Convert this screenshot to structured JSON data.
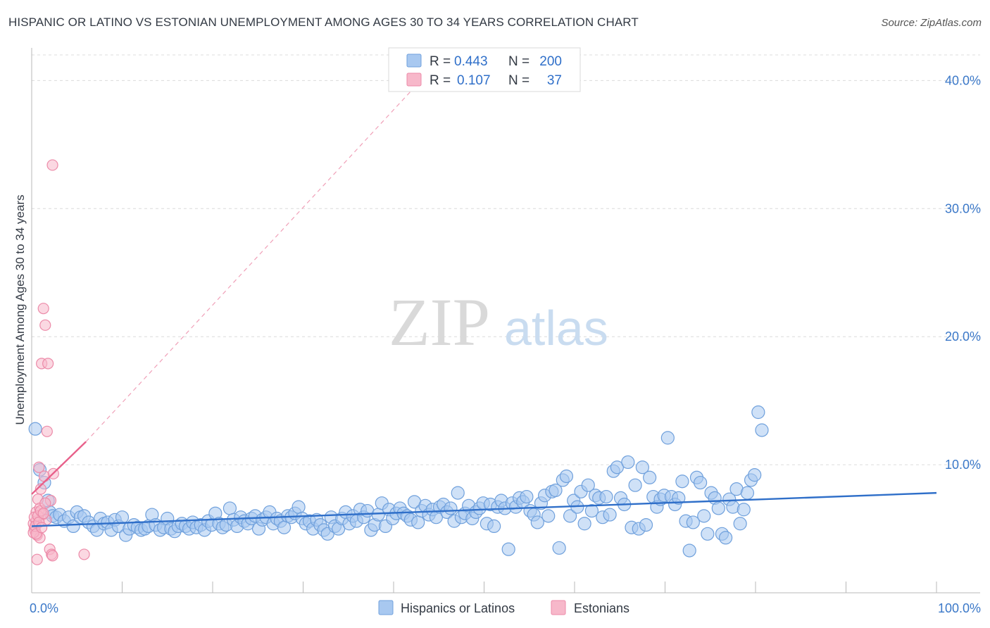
{
  "chart_data": {
    "type": "scatter",
    "title": "HISPANIC OR LATINO VS ESTONIAN UNEMPLOYMENT AMONG AGES 30 TO 34 YEARS CORRELATION CHART",
    "source": "Source: ZipAtlas.com",
    "ylabel": "Unemployment Among Ages 30 to 34 years",
    "xlim": [
      0,
      100
    ],
    "ylim": [
      0,
      42
    ],
    "x_tick_labels": [
      "0.0%",
      "100.0%"
    ],
    "y_ticks": [
      10,
      20,
      30,
      40
    ],
    "y_tick_labels": [
      "10.0%",
      "20.0%",
      "30.0%",
      "40.0%"
    ],
    "watermark": {
      "zip": "ZIP",
      "atlas": "atlas"
    },
    "legend": [
      {
        "r_label": "R =",
        "r_value": "0.443",
        "n_label": "N =",
        "n_value": "200",
        "color": "#a8c8f0"
      },
      {
        "r_label": "R =",
        "r_value": "0.107",
        "n_label": "N =",
        "n_value": "37",
        "color": "#f7b8ca"
      }
    ],
    "series": [
      {
        "name": "Hispanics or Latinos",
        "fill": "#a8c8f0",
        "stroke": "#6fa0dc",
        "trend": {
          "x": [
            0,
            100
          ],
          "y": [
            5.2,
            7.8
          ],
          "color": "#2f6fc9"
        },
        "points": [
          [
            0.4,
            12.8
          ],
          [
            0.9,
            9.6
          ],
          [
            1.4,
            8.6
          ],
          [
            1.8,
            7.2
          ],
          [
            2.0,
            6.3
          ],
          [
            2.3,
            6.0
          ],
          [
            2.7,
            5.9
          ],
          [
            3.1,
            6.1
          ],
          [
            3.6,
            5.6
          ],
          [
            4.1,
            5.9
          ],
          [
            4.6,
            5.2
          ],
          [
            5.0,
            6.3
          ],
          [
            5.4,
            5.9
          ],
          [
            5.8,
            6.0
          ],
          [
            6.3,
            5.5
          ],
          [
            6.8,
            5.2
          ],
          [
            7.2,
            4.9
          ],
          [
            7.6,
            5.8
          ],
          [
            8.0,
            5.4
          ],
          [
            8.4,
            5.5
          ],
          [
            8.8,
            4.9
          ],
          [
            9.2,
            5.7
          ],
          [
            9.6,
            5.2
          ],
          [
            10.0,
            5.9
          ],
          [
            10.4,
            4.5
          ],
          [
            10.8,
            5.0
          ],
          [
            11.3,
            5.3
          ],
          [
            11.7,
            5.1
          ],
          [
            12.1,
            4.9
          ],
          [
            12.5,
            5.0
          ],
          [
            12.9,
            5.2
          ],
          [
            13.3,
            6.1
          ],
          [
            13.7,
            5.3
          ],
          [
            14.2,
            4.9
          ],
          [
            14.6,
            5.1
          ],
          [
            15.0,
            5.8
          ],
          [
            15.4,
            5.0
          ],
          [
            15.8,
            4.8
          ],
          [
            16.2,
            5.2
          ],
          [
            16.6,
            5.4
          ],
          [
            17.0,
            5.2
          ],
          [
            17.4,
            5.0
          ],
          [
            17.8,
            5.5
          ],
          [
            18.2,
            5.1
          ],
          [
            18.7,
            5.3
          ],
          [
            19.1,
            4.9
          ],
          [
            19.5,
            5.6
          ],
          [
            19.9,
            5.3
          ],
          [
            20.3,
            6.2
          ],
          [
            20.7,
            5.4
          ],
          [
            21.1,
            5.1
          ],
          [
            21.5,
            5.3
          ],
          [
            21.9,
            6.6
          ],
          [
            22.3,
            5.7
          ],
          [
            22.7,
            5.2
          ],
          [
            23.1,
            5.9
          ],
          [
            23.5,
            5.6
          ],
          [
            23.9,
            5.4
          ],
          [
            24.3,
            5.8
          ],
          [
            24.7,
            6.0
          ],
          [
            25.1,
            5.0
          ],
          [
            25.5,
            5.7
          ],
          [
            25.9,
            5.9
          ],
          [
            26.3,
            6.3
          ],
          [
            26.7,
            5.4
          ],
          [
            27.1,
            5.8
          ],
          [
            27.5,
            5.6
          ],
          [
            27.9,
            5.1
          ],
          [
            28.3,
            6.0
          ],
          [
            28.7,
            5.9
          ],
          [
            29.1,
            6.2
          ],
          [
            29.5,
            6.7
          ],
          [
            29.9,
            5.8
          ],
          [
            30.3,
            5.4
          ],
          [
            30.7,
            5.6
          ],
          [
            31.1,
            5.0
          ],
          [
            31.5,
            5.7
          ],
          [
            31.9,
            5.3
          ],
          [
            32.3,
            4.9
          ],
          [
            32.7,
            4.6
          ],
          [
            33.1,
            5.9
          ],
          [
            33.5,
            5.2
          ],
          [
            33.9,
            5.0
          ],
          [
            34.3,
            5.8
          ],
          [
            34.7,
            6.3
          ],
          [
            35.1,
            5.4
          ],
          [
            35.5,
            6.0
          ],
          [
            35.9,
            5.6
          ],
          [
            36.3,
            6.5
          ],
          [
            36.7,
            5.9
          ],
          [
            37.1,
            6.4
          ],
          [
            37.5,
            4.9
          ],
          [
            37.9,
            5.3
          ],
          [
            38.3,
            6.1
          ],
          [
            38.7,
            7.0
          ],
          [
            39.1,
            5.2
          ],
          [
            39.5,
            6.5
          ],
          [
            39.9,
            5.8
          ],
          [
            40.3,
            6.2
          ],
          [
            40.7,
            6.6
          ],
          [
            41.1,
            6.2
          ],
          [
            41.5,
            6.0
          ],
          [
            41.9,
            5.7
          ],
          [
            42.3,
            7.1
          ],
          [
            42.7,
            5.5
          ],
          [
            43.1,
            6.4
          ],
          [
            43.5,
            6.8
          ],
          [
            43.9,
            6.1
          ],
          [
            44.3,
            6.5
          ],
          [
            44.7,
            5.9
          ],
          [
            45.1,
            6.7
          ],
          [
            45.5,
            6.9
          ],
          [
            45.9,
            6.3
          ],
          [
            46.3,
            6.6
          ],
          [
            46.7,
            5.6
          ],
          [
            47.1,
            7.8
          ],
          [
            47.5,
            5.9
          ],
          [
            47.9,
            6.2
          ],
          [
            48.3,
            6.8
          ],
          [
            48.7,
            5.8
          ],
          [
            49.1,
            6.3
          ],
          [
            49.5,
            6.6
          ],
          [
            49.9,
            7.0
          ],
          [
            50.3,
            5.4
          ],
          [
            50.7,
            6.9
          ],
          [
            51.1,
            5.2
          ],
          [
            51.5,
            6.7
          ],
          [
            51.9,
            7.2
          ],
          [
            52.3,
            6.6
          ],
          [
            52.7,
            3.4
          ],
          [
            53.1,
            7.0
          ],
          [
            53.5,
            6.7
          ],
          [
            53.9,
            7.4
          ],
          [
            54.3,
            7.1
          ],
          [
            54.7,
            7.5
          ],
          [
            55.1,
            6.4
          ],
          [
            55.5,
            6.1
          ],
          [
            55.9,
            5.5
          ],
          [
            56.3,
            7.0
          ],
          [
            56.7,
            7.6
          ],
          [
            57.1,
            6.0
          ],
          [
            57.5,
            7.9
          ],
          [
            57.9,
            8.0
          ],
          [
            58.3,
            3.5
          ],
          [
            58.7,
            8.8
          ],
          [
            59.1,
            9.1
          ],
          [
            59.5,
            6.0
          ],
          [
            59.9,
            7.2
          ],
          [
            60.3,
            6.7
          ],
          [
            60.7,
            7.9
          ],
          [
            61.1,
            5.4
          ],
          [
            61.5,
            8.4
          ],
          [
            61.9,
            6.4
          ],
          [
            62.3,
            7.6
          ],
          [
            62.7,
            7.4
          ],
          [
            63.1,
            5.9
          ],
          [
            63.5,
            7.5
          ],
          [
            63.9,
            6.1
          ],
          [
            64.3,
            9.5
          ],
          [
            64.7,
            9.8
          ],
          [
            65.1,
            7.4
          ],
          [
            65.5,
            6.9
          ],
          [
            65.9,
            10.2
          ],
          [
            66.3,
            5.1
          ],
          [
            66.7,
            8.4
          ],
          [
            67.1,
            5.0
          ],
          [
            67.5,
            9.8
          ],
          [
            67.9,
            5.3
          ],
          [
            68.3,
            9.0
          ],
          [
            68.7,
            7.5
          ],
          [
            69.1,
            6.7
          ],
          [
            69.5,
            7.3
          ],
          [
            69.9,
            7.6
          ],
          [
            70.3,
            12.1
          ],
          [
            70.7,
            7.5
          ],
          [
            71.1,
            6.9
          ],
          [
            71.5,
            7.4
          ],
          [
            71.9,
            8.7
          ],
          [
            72.3,
            5.6
          ],
          [
            72.7,
            3.3
          ],
          [
            73.1,
            5.5
          ],
          [
            73.5,
            9.0
          ],
          [
            73.9,
            8.6
          ],
          [
            74.3,
            6.0
          ],
          [
            74.7,
            4.6
          ],
          [
            75.1,
            7.8
          ],
          [
            75.5,
            7.4
          ],
          [
            75.9,
            6.6
          ],
          [
            76.3,
            4.6
          ],
          [
            76.7,
            4.3
          ],
          [
            77.1,
            7.3
          ],
          [
            77.5,
            6.7
          ],
          [
            77.9,
            8.1
          ],
          [
            78.3,
            5.4
          ],
          [
            78.7,
            6.5
          ],
          [
            79.1,
            7.8
          ],
          [
            79.5,
            8.8
          ],
          [
            79.9,
            9.2
          ],
          [
            80.3,
            14.1
          ],
          [
            80.7,
            12.7
          ]
        ]
      },
      {
        "name": "Estonians",
        "fill": "#f7b8ca",
        "stroke": "#ec8aa8",
        "trend": {
          "x": [
            0,
            6.0
          ],
          "y": [
            7.7,
            11.8
          ],
          "color": "#e8608a",
          "extension_to": [
            43,
            40.0
          ]
        },
        "points": [
          [
            0.2,
            5.4
          ],
          [
            0.3,
            5.0
          ],
          [
            0.4,
            4.8
          ],
          [
            0.5,
            5.6
          ],
          [
            0.5,
            6.3
          ],
          [
            0.6,
            4.5
          ],
          [
            0.6,
            2.6
          ],
          [
            0.7,
            7.3
          ],
          [
            0.8,
            9.8
          ],
          [
            0.9,
            6.6
          ],
          [
            0.9,
            4.3
          ],
          [
            1.0,
            8.1
          ],
          [
            1.1,
            17.9
          ],
          [
            1.2,
            6.1
          ],
          [
            1.3,
            22.2
          ],
          [
            1.4,
            9.1
          ],
          [
            1.5,
            20.9
          ],
          [
            1.6,
            5.7
          ],
          [
            1.7,
            12.6
          ],
          [
            1.8,
            17.9
          ],
          [
            2.0,
            3.4
          ],
          [
            2.1,
            7.2
          ],
          [
            2.2,
            3.0
          ],
          [
            2.3,
            2.9
          ],
          [
            2.3,
            33.4
          ],
          [
            2.4,
            9.3
          ],
          [
            5.8,
            3.0
          ],
          [
            0.2,
            4.7
          ],
          [
            0.3,
            5.9
          ],
          [
            0.4,
            5.2
          ],
          [
            0.5,
            4.6
          ],
          [
            0.7,
            6.0
          ],
          [
            0.8,
            5.5
          ],
          [
            1.0,
            6.4
          ],
          [
            1.1,
            5.1
          ],
          [
            1.3,
            6.2
          ],
          [
            1.5,
            7.0
          ]
        ]
      }
    ]
  }
}
